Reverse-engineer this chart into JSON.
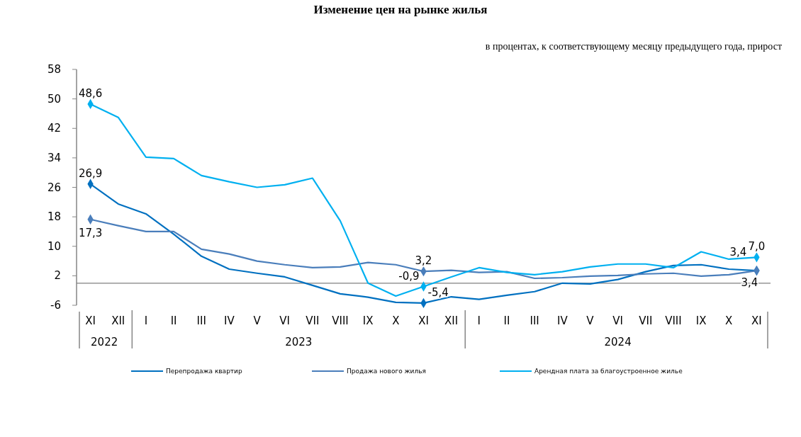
{
  "chart_data": {
    "type": "line",
    "title": "Изменение цен на рынке жилья",
    "subtitle": "в процентах, к соответствующему месяцу предыдущего года, прирост",
    "categories": [
      "XI",
      "XII",
      "I",
      "II",
      "III",
      "IV",
      "V",
      "VI",
      "VII",
      "VIII",
      "IX",
      "X",
      "XI",
      "XII",
      "I",
      "II",
      "III",
      "IV",
      "V",
      "VI",
      "VII",
      "VIII",
      "IX",
      "X",
      "XI"
    ],
    "annotations": [
      "2022",
      "2023",
      "2024"
    ],
    "ylim": [
      -6,
      58
    ],
    "yticks": [
      -6,
      2,
      10,
      18,
      26,
      34,
      42,
      50,
      58
    ],
    "grid": false,
    "legend": "bottom",
    "line_style": "solid",
    "ref_lines": [
      {
        "axis": "y",
        "value": 0,
        "color": "#808080"
      }
    ],
    "series": [
      {
        "name": "Перепродажа квартир",
        "color": "#0070c0",
        "values": [
          26.9,
          21.5,
          18.8,
          13.3,
          7.3,
          3.8,
          2.7,
          1.7,
          -0.6,
          -2.9,
          -3.8,
          -5.2,
          -5.4,
          -3.7,
          -4.4,
          -3.3,
          -2.3,
          0,
          -0.2,
          1.0,
          3.1,
          4.8,
          5.0,
          3.8,
          3.4
        ],
        "value_labels": [
          "26,9",
          null,
          null,
          null,
          null,
          null,
          null,
          null,
          null,
          null,
          null,
          null,
          "-5,4",
          null,
          null,
          null,
          null,
          null,
          null,
          null,
          null,
          null,
          null,
          null,
          "3,4"
        ]
      },
      {
        "name": "Продажа нового жилья",
        "color": "#4a7ebb",
        "values": [
          17.3,
          15.6,
          14.0,
          14.0,
          9.2,
          7.9,
          6.0,
          5.0,
          4.2,
          4.4,
          5.6,
          5.0,
          3.2,
          3.5,
          2.9,
          3.1,
          1.3,
          1.5,
          1.9,
          2.1,
          2.5,
          2.7,
          1.9,
          2.3,
          3.4
        ],
        "value_labels": [
          "17,3",
          null,
          null,
          null,
          null,
          null,
          null,
          null,
          null,
          null,
          null,
          null,
          "3,2",
          null,
          null,
          null,
          null,
          null,
          null,
          null,
          null,
          null,
          null,
          null,
          "3,4"
        ]
      },
      {
        "name": "Арендная плата за благоустроенное жилье",
        "color": "#00b0f0",
        "values": [
          48.6,
          45.0,
          34.2,
          33.8,
          29.2,
          27.5,
          26.0,
          26.7,
          28.5,
          16.9,
          0,
          -3.5,
          -0.9,
          1.7,
          4.2,
          2.9,
          2.3,
          3.1,
          4.4,
          5.2,
          5.2,
          4.2,
          8.5,
          6.5,
          7.0
        ],
        "value_labels": [
          "48,6",
          null,
          null,
          null,
          null,
          null,
          null,
          null,
          null,
          null,
          null,
          null,
          "-0,9",
          null,
          null,
          null,
          null,
          null,
          null,
          null,
          null,
          null,
          null,
          null,
          "7,0"
        ]
      }
    ]
  }
}
